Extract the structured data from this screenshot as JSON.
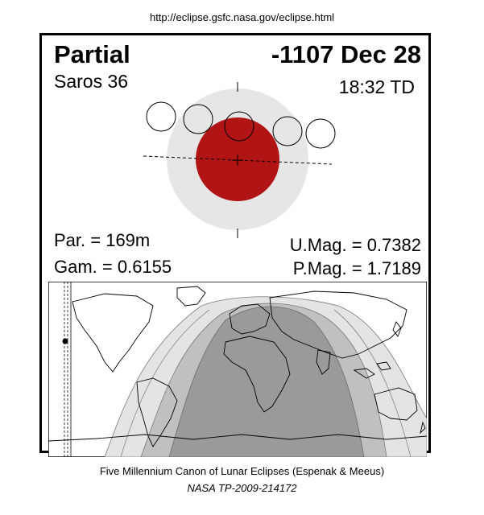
{
  "header": {
    "url": "http://eclipse.gsfc.nasa.gov/eclipse.html"
  },
  "eclipse": {
    "type": "Partial",
    "date": "-1107 Dec 28",
    "saros": "Saros  36",
    "time": "18:32 TD",
    "par": "Par. = 169m",
    "gam": "Gam. = 0.6155",
    "umag": "U.Mag. = 0.7382",
    "pmag": "P.Mag. = 1.7189"
  },
  "colors": {
    "umbra": "#b01414",
    "penumbra": "#e6e6e6",
    "map_dark": "#9a9a9a",
    "map_mid": "#c0c0c0",
    "map_light": "#e4e4e4"
  },
  "footer": {
    "canon": "Five Millennium Canon of Lunar Eclipses (Espenak & Meeus)",
    "publication": "NASA TP-2009-214172"
  }
}
